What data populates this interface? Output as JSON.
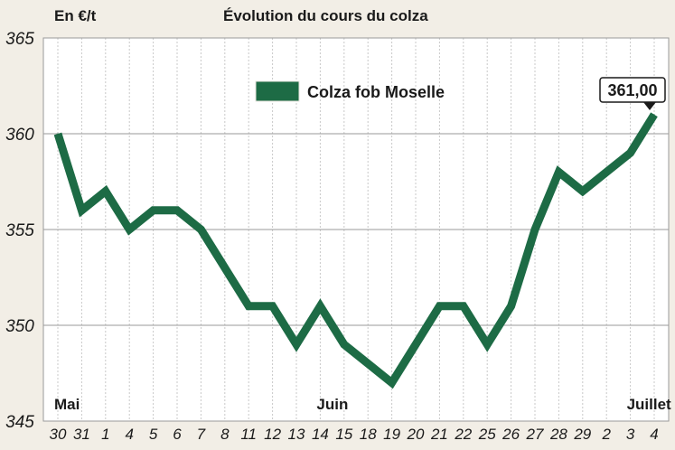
{
  "chart_data": {
    "type": "line",
    "title": "Évolution du cours du colza",
    "ylabel": "En €/t",
    "xlabel": "",
    "ylim": [
      345,
      365
    ],
    "yticks": [
      345,
      350,
      355,
      360,
      365
    ],
    "grid": true,
    "legend_position": "top-center",
    "categories": [
      "30",
      "31",
      "1",
      "4",
      "5",
      "6",
      "7",
      "8",
      "11",
      "12",
      "13",
      "14",
      "15",
      "18",
      "19",
      "20",
      "21",
      "22",
      "25",
      "26",
      "27",
      "28",
      "29",
      "2",
      "3",
      "4"
    ],
    "months": [
      {
        "label": "Mai",
        "index": 0
      },
      {
        "label": "Juin",
        "index": 11
      },
      {
        "label": "Juillet",
        "index": 24
      }
    ],
    "series": [
      {
        "name": "Colza fob Moselle",
        "color": "#1d6b45",
        "values": [
          360,
          356,
          357,
          355,
          356,
          356,
          355,
          353,
          351,
          351,
          349,
          351,
          349,
          348,
          347,
          349,
          351,
          351,
          349,
          351,
          355,
          358,
          357,
          358,
          359,
          361
        ]
      }
    ],
    "annotation": {
      "label": "361,00",
      "index": 25
    }
  }
}
